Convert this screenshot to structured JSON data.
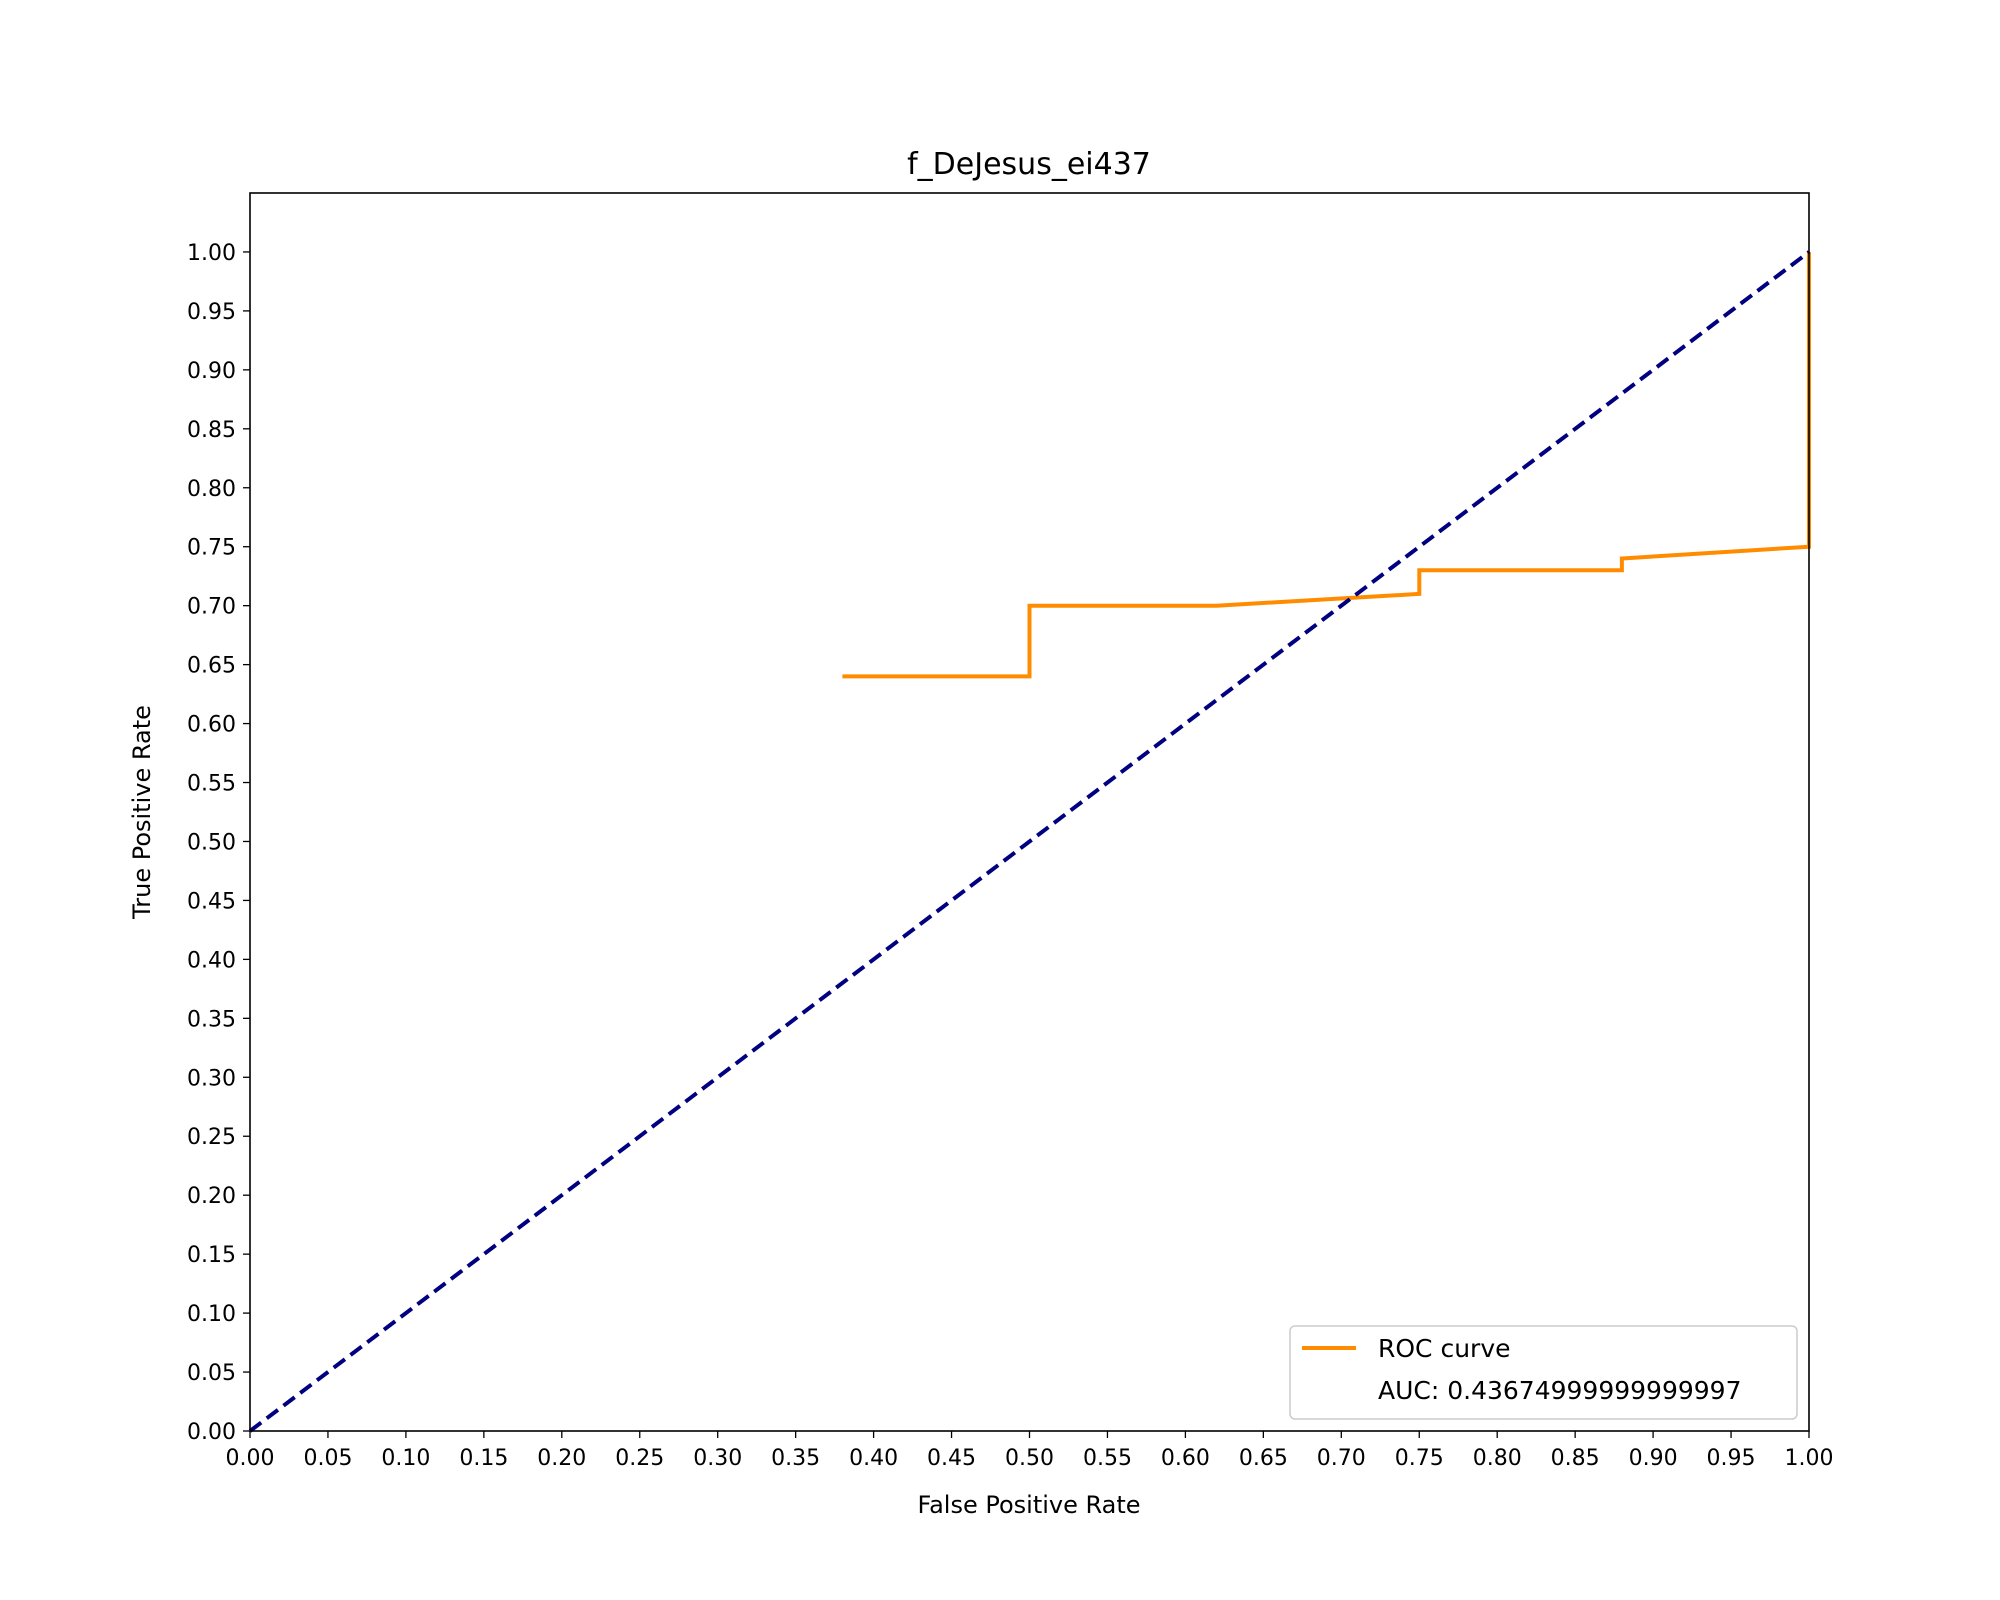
{
  "chart_data": {
    "type": "line",
    "title": "f_DeJesus_ei437",
    "xlabel": "False Positive Rate",
    "ylabel": "True Positive Rate",
    "xlim": [
      0,
      1
    ],
    "ylim": [
      0,
      1.05
    ],
    "xticks": [
      "0.00",
      "0.05",
      "0.10",
      "0.15",
      "0.20",
      "0.25",
      "0.30",
      "0.35",
      "0.40",
      "0.45",
      "0.50",
      "0.55",
      "0.60",
      "0.65",
      "0.70",
      "0.75",
      "0.80",
      "0.85",
      "0.90",
      "0.95",
      "1.00"
    ],
    "yticks": [
      "0.00",
      "0.05",
      "0.10",
      "0.15",
      "0.20",
      "0.25",
      "0.30",
      "0.35",
      "0.40",
      "0.45",
      "0.50",
      "0.55",
      "0.60",
      "0.65",
      "0.70",
      "0.75",
      "0.80",
      "0.85",
      "0.90",
      "0.95",
      "1.00"
    ],
    "grid": false,
    "legend_position": "lower-right",
    "series": [
      {
        "name": "ROC curve",
        "color": "#ff8c00",
        "style": "solid",
        "x": [
          0.38,
          0.5,
          0.5,
          0.62,
          0.75,
          0.75,
          0.88,
          0.88,
          1.0,
          1.0
        ],
        "y": [
          0.64,
          0.64,
          0.7,
          0.7,
          0.71,
          0.73,
          0.73,
          0.74,
          0.75,
          1.0
        ]
      },
      {
        "color": "#000080",
        "style": "dashed",
        "x": [
          0,
          1
        ],
        "y": [
          0,
          1
        ]
      }
    ],
    "legend": {
      "entries": [
        "ROC curve",
        "AUC: 0.43674999999999997"
      ]
    }
  }
}
